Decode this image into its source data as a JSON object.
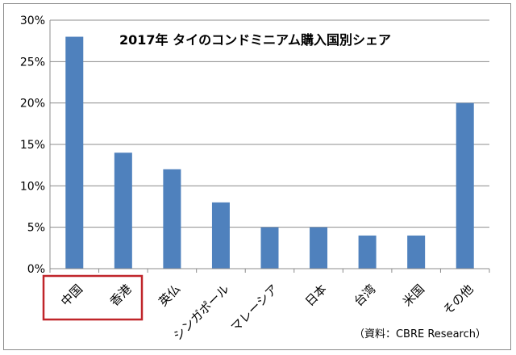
{
  "chart_data": {
    "type": "bar",
    "title": "2017年 タイのコンドミニアム購入国別シェア",
    "categories": [
      "中国",
      "香港",
      "英仏",
      "シンガポール",
      "マレーシア",
      "日本",
      "台湾",
      "米国",
      "その他"
    ],
    "values": [
      28,
      14,
      12,
      8,
      5,
      5,
      4,
      4,
      20
    ],
    "value_unit": "%",
    "ylim": [
      0,
      30
    ],
    "yticks": [
      0,
      5,
      10,
      15,
      20,
      25,
      30
    ],
    "ytick_labels": [
      "0%",
      "5%",
      "10%",
      "15%",
      "20%",
      "25%",
      "30%"
    ],
    "grid": true,
    "xlabel": "",
    "ylabel": "",
    "highlight_categories": [
      "中国",
      "香港"
    ],
    "source": "（資料：CBRE Research）"
  },
  "colors": {
    "bar": "#4f81bd",
    "grid": "#8c8c8c",
    "highlight_box": "#c0252a"
  }
}
